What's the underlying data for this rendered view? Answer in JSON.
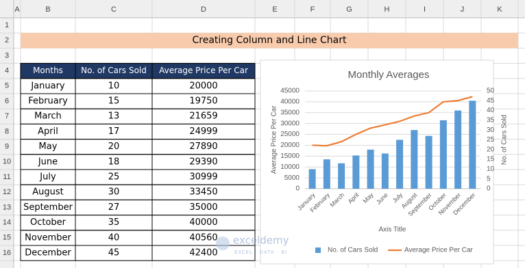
{
  "spreadsheet": {
    "columns": [
      "A",
      "B",
      "C",
      "D",
      "E",
      "F",
      "G",
      "H",
      "I",
      "J",
      "K"
    ],
    "rows": [
      "1",
      "2",
      "3",
      "4",
      "5",
      "6",
      "7",
      "8",
      "9",
      "10",
      "11",
      "12",
      "13",
      "14",
      "15",
      "16"
    ]
  },
  "title": "Creating Column and Line Chart",
  "table": {
    "header": [
      "Months",
      "No. of Cars Sold",
      "Average Price Per Car"
    ],
    "rows": [
      [
        "January",
        "10",
        "20000"
      ],
      [
        "February",
        "15",
        "19750"
      ],
      [
        "March",
        "13",
        "21659"
      ],
      [
        "April",
        "17",
        "24999"
      ],
      [
        "May",
        "20",
        "27890"
      ],
      [
        "June",
        "18",
        "29390"
      ],
      [
        "July",
        "25",
        "30999"
      ],
      [
        "August",
        "30",
        "33450"
      ],
      [
        "September",
        "27",
        "35000"
      ],
      [
        "October",
        "35",
        "40000"
      ],
      [
        "November",
        "40",
        "40560"
      ],
      [
        "December",
        "45",
        "42400"
      ]
    ]
  },
  "watermark": {
    "name": "exceldemy",
    "tagline": "EXCEL · DATA · BI"
  },
  "chart_data": {
    "type": "bar-line",
    "title": "Monthly Averages",
    "categories": [
      "January",
      "February",
      "March",
      "April",
      "May",
      "June",
      "July",
      "August",
      "September",
      "October",
      "November",
      "December"
    ],
    "series": [
      {
        "name": "No. of Cars Sold",
        "type": "bar",
        "axis": "y2",
        "color": "#5b9bd5",
        "values": [
          10,
          15,
          13,
          17,
          20,
          18,
          25,
          30,
          27,
          35,
          40,
          45
        ]
      },
      {
        "name": "Average Price Per Car",
        "type": "line",
        "color": "#ed7d31",
        "values": [
          20000,
          19750,
          21659,
          24999,
          27890,
          29390,
          30999,
          33450,
          35000,
          40000,
          40560,
          42400
        ]
      }
    ],
    "xlabel": "Axis Title",
    "ylabel": "Average Price Per Car",
    "y2label": "No. of Cars Sold",
    "ylim": [
      0,
      45000
    ],
    "yticks": [
      0,
      5000,
      10000,
      15000,
      20000,
      25000,
      30000,
      35000,
      40000,
      45000
    ],
    "y2lim": [
      0,
      50
    ],
    "y2ticks": [
      0,
      5,
      10,
      15,
      20,
      25,
      30,
      35,
      40,
      45,
      50
    ],
    "grid": true,
    "legend": "bottom"
  }
}
